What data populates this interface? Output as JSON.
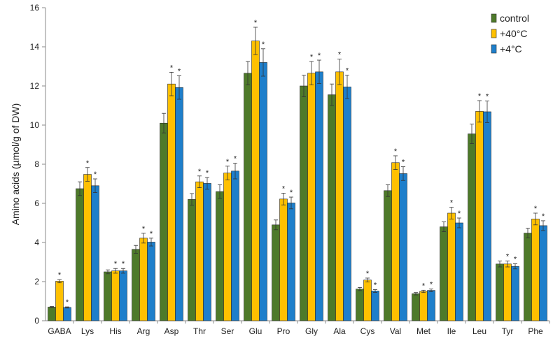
{
  "chart_data": {
    "type": "bar",
    "title": "",
    "xlabel": "",
    "ylabel": "Amino acids (µmol/g of DW)",
    "ylim": [
      0,
      16
    ],
    "yticks": [
      0,
      2,
      4,
      6,
      8,
      10,
      12,
      14,
      16
    ],
    "grid": false,
    "legend_position": "top-right",
    "categories": [
      "GABA",
      "Lys",
      "His",
      "Arg",
      "Asp",
      "Thr",
      "Ser",
      "Glu",
      "Pro",
      "Gly",
      "Ala",
      "Cys",
      "Val",
      "Met",
      "Ile",
      "Leu",
      "Tyr",
      "Phe"
    ],
    "significance_marker": "*",
    "series": [
      {
        "name": "control",
        "color": "#4e7a2a",
        "values": [
          0.7,
          6.75,
          2.5,
          3.65,
          10.1,
          6.2,
          6.6,
          12.65,
          4.9,
          12.0,
          11.55,
          1.62,
          6.65,
          1.38,
          4.8,
          9.55,
          2.9,
          4.48
        ],
        "errors": [
          0.03,
          0.35,
          0.1,
          0.2,
          0.5,
          0.3,
          0.35,
          0.6,
          0.25,
          0.55,
          0.55,
          0.08,
          0.3,
          0.06,
          0.25,
          0.5,
          0.15,
          0.25
        ],
        "significant": [
          false,
          false,
          false,
          false,
          false,
          false,
          false,
          false,
          false,
          false,
          false,
          false,
          false,
          false,
          false,
          false,
          false,
          false
        ]
      },
      {
        "name": "+40°C",
        "color": "#ffc000",
        "values": [
          2.02,
          7.48,
          2.55,
          4.22,
          12.1,
          7.1,
          7.55,
          14.3,
          6.22,
          12.65,
          12.72,
          2.08,
          8.08,
          1.5,
          5.5,
          10.7,
          2.9,
          5.2
        ],
        "errors": [
          0.08,
          0.35,
          0.12,
          0.25,
          0.6,
          0.3,
          0.35,
          0.7,
          0.3,
          0.6,
          0.65,
          0.1,
          0.35,
          0.06,
          0.3,
          0.55,
          0.15,
          0.3
        ],
        "significant": [
          true,
          true,
          true,
          true,
          true,
          true,
          true,
          true,
          true,
          true,
          true,
          true,
          true,
          true,
          true,
          true,
          true,
          true
        ]
      },
      {
        "name": "+4°C",
        "color": "#1e7fcb",
        "values": [
          0.68,
          6.9,
          2.55,
          4.02,
          11.92,
          7.02,
          7.65,
          13.2,
          6.02,
          12.72,
          11.95,
          1.52,
          7.52,
          1.55,
          5.0,
          10.68,
          2.78,
          4.86
        ],
        "errors": [
          0.03,
          0.35,
          0.12,
          0.2,
          0.6,
          0.3,
          0.4,
          0.7,
          0.3,
          0.6,
          0.6,
          0.07,
          0.35,
          0.07,
          0.25,
          0.55,
          0.13,
          0.25
        ],
        "significant": [
          true,
          true,
          true,
          true,
          true,
          true,
          true,
          true,
          true,
          true,
          true,
          true,
          true,
          true,
          true,
          true,
          true,
          true
        ]
      }
    ]
  }
}
